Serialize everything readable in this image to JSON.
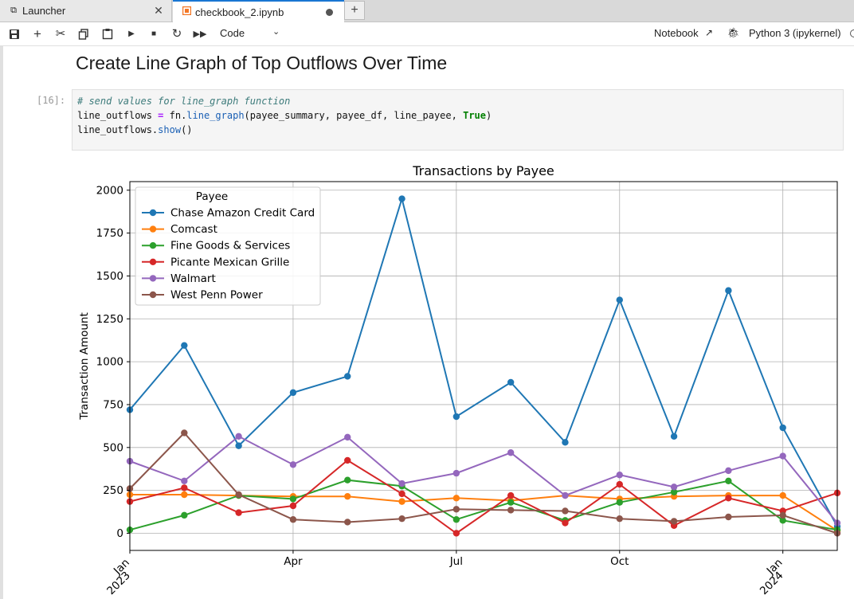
{
  "tabs": [
    {
      "label": "Launcher",
      "icon": "launcher-icon"
    },
    {
      "label": "checkbook_2.ipynb",
      "icon": "notebook-icon",
      "active": true
    }
  ],
  "toolbar": {
    "cell_type": "Code",
    "notebook_label": "Notebook",
    "kernel_label": "Python 3 (ipykernel)",
    "icons": [
      "save-icon",
      "add-cell-icon",
      "cut-icon",
      "copy-icon",
      "paste-icon",
      "run-icon",
      "stop-icon",
      "restart-icon",
      "fast-forward-icon"
    ]
  },
  "heading": "Create Line Graph of Top Outflows Over Time",
  "cell": {
    "prompt": "[16]:",
    "line1": "# send values for line_graph function",
    "line2_a": "line_outflows ",
    "line2_op": "=",
    "line2_b": " fn.",
    "line2_fn": "line_graph",
    "line2_c": "(payee_summary, payee_df, line_payee, ",
    "line2_kw": "True",
    "line2_d": ")",
    "line3_a": "line_outflows.",
    "line3_fn": "show",
    "line3_b": "()"
  },
  "chart_data": {
    "type": "line",
    "title": "Transactions by Payee",
    "ylabel": "Transaction Amount",
    "xlabel": "",
    "ylim": [
      -100,
      2050
    ],
    "yticks": [
      0,
      250,
      500,
      750,
      1000,
      1250,
      1500,
      1750,
      2000
    ],
    "grid": true,
    "legend_title": "Payee",
    "legend_position": "top-left",
    "x": [
      "2023-01",
      "2023-02",
      "2023-03",
      "2023-04",
      "2023-05",
      "2023-06",
      "2023-07",
      "2023-08",
      "2023-09",
      "2023-10",
      "2023-11",
      "2023-12",
      "2024-01",
      "2024-02"
    ],
    "xticks": [
      {
        "x": "2023-01",
        "label": [
          "Jan",
          "2023"
        ]
      },
      {
        "x": "2023-04",
        "label": [
          "Apr"
        ]
      },
      {
        "x": "2023-07",
        "label": [
          "Jul"
        ]
      },
      {
        "x": "2023-10",
        "label": [
          "Oct"
        ]
      },
      {
        "x": "2024-01",
        "label": [
          "Jan",
          "2024"
        ]
      }
    ],
    "series": [
      {
        "name": "Chase Amazon Credit Card",
        "color": "#1f77b4",
        "values": [
          720,
          1095,
          510,
          820,
          915,
          1950,
          680,
          880,
          530,
          1360,
          565,
          1415,
          615,
          40
        ]
      },
      {
        "name": "Comcast",
        "color": "#ff7f0e",
        "values": [
          225,
          225,
          220,
          215,
          215,
          185,
          205,
          190,
          220,
          200,
          215,
          220,
          220,
          15
        ]
      },
      {
        "name": "Fine Goods & Services",
        "color": "#2ca02c",
        "values": [
          20,
          105,
          220,
          200,
          310,
          275,
          80,
          180,
          75,
          180,
          240,
          305,
          75,
          20
        ]
      },
      {
        "name": "Picante Mexican Grille",
        "color": "#d62728",
        "values": [
          185,
          265,
          120,
          160,
          425,
          230,
          0,
          220,
          60,
          285,
          45,
          205,
          130,
          235
        ]
      },
      {
        "name": "Walmart",
        "color": "#9467bd",
        "values": [
          420,
          305,
          565,
          400,
          560,
          290,
          350,
          470,
          220,
          340,
          270,
          365,
          450,
          60
        ]
      },
      {
        "name": "West Penn Power",
        "color": "#8c564b",
        "values": [
          260,
          585,
          225,
          80,
          65,
          85,
          140,
          135,
          130,
          85,
          70,
          95,
          105,
          0
        ]
      }
    ]
  }
}
